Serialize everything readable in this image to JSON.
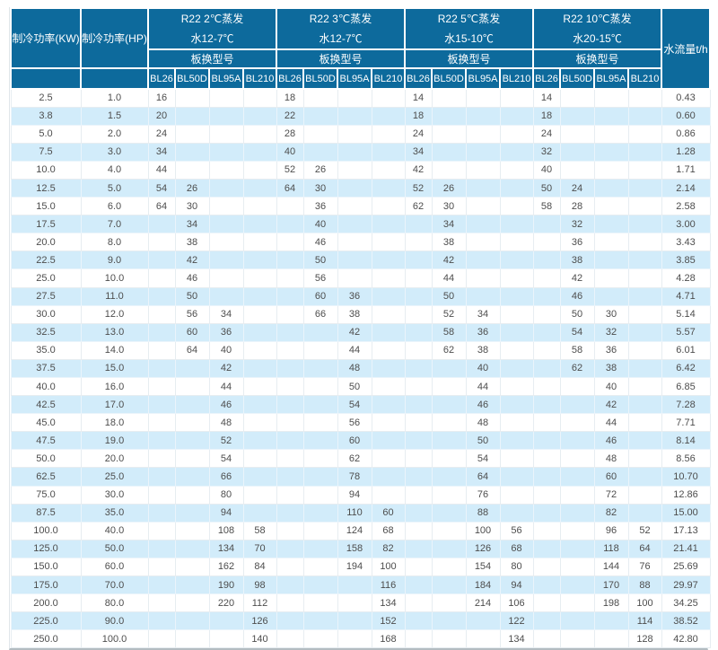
{
  "table": {
    "header": {
      "kw_label": "制冷功率(KW)",
      "hp_label": "制冷功率(HP)",
      "water_label": "水流量t/h",
      "model_row_label": "板换型号",
      "model_columns": [
        "BL26",
        "BL50D",
        "BL95A",
        "BL210"
      ],
      "groups": [
        {
          "title": "R22 2℃蒸发",
          "subtitle": "水12-7℃"
        },
        {
          "title": "R22 3℃蒸发",
          "subtitle": "水12-7℃"
        },
        {
          "title": "R22 5℃蒸发",
          "subtitle": "水15-10℃"
        },
        {
          "title": "R22 10℃蒸发",
          "subtitle": "水20-15℃"
        }
      ]
    },
    "rows": [
      [
        "2.5",
        "1.0",
        "16",
        "",
        "",
        "",
        "18",
        "",
        "",
        "",
        "14",
        "",
        "",
        "",
        "14",
        "",
        "",
        "",
        "0.43"
      ],
      [
        "3.8",
        "1.5",
        "20",
        "",
        "",
        "",
        "22",
        "",
        "",
        "",
        "18",
        "",
        "",
        "",
        "18",
        "",
        "",
        "",
        "0.60"
      ],
      [
        "5.0",
        "2.0",
        "24",
        "",
        "",
        "",
        "28",
        "",
        "",
        "",
        "24",
        "",
        "",
        "",
        "24",
        "",
        "",
        "",
        "0.86"
      ],
      [
        "7.5",
        "3.0",
        "34",
        "",
        "",
        "",
        "40",
        "",
        "",
        "",
        "34",
        "",
        "",
        "",
        "32",
        "",
        "",
        "",
        "1.28"
      ],
      [
        "10.0",
        "4.0",
        "44",
        "",
        "",
        "",
        "52",
        "26",
        "",
        "",
        "42",
        "",
        "",
        "",
        "40",
        "",
        "",
        "",
        "1.71"
      ],
      [
        "12.5",
        "5.0",
        "54",
        "26",
        "",
        "",
        "64",
        "30",
        "",
        "",
        "52",
        "26",
        "",
        "",
        "50",
        "24",
        "",
        "",
        "2.14"
      ],
      [
        "15.0",
        "6.0",
        "64",
        "30",
        "",
        "",
        "",
        "36",
        "",
        "",
        "62",
        "30",
        "",
        "",
        "58",
        "28",
        "",
        "",
        "2.58"
      ],
      [
        "17.5",
        "7.0",
        "",
        "34",
        "",
        "",
        "",
        "40",
        "",
        "",
        "",
        "34",
        "",
        "",
        "",
        "32",
        "",
        "",
        "3.00"
      ],
      [
        "20.0",
        "8.0",
        "",
        "38",
        "",
        "",
        "",
        "46",
        "",
        "",
        "",
        "38",
        "",
        "",
        "",
        "36",
        "",
        "",
        "3.43"
      ],
      [
        "22.5",
        "9.0",
        "",
        "42",
        "",
        "",
        "",
        "50",
        "",
        "",
        "",
        "42",
        "",
        "",
        "",
        "38",
        "",
        "",
        "3.85"
      ],
      [
        "25.0",
        "10.0",
        "",
        "46",
        "",
        "",
        "",
        "56",
        "",
        "",
        "",
        "44",
        "",
        "",
        "",
        "42",
        "",
        "",
        "4.28"
      ],
      [
        "27.5",
        "11.0",
        "",
        "50",
        "",
        "",
        "",
        "60",
        "36",
        "",
        "",
        "50",
        "",
        "",
        "",
        "46",
        "",
        "",
        "4.71"
      ],
      [
        "30.0",
        "12.0",
        "",
        "56",
        "34",
        "",
        "",
        "66",
        "38",
        "",
        "",
        "52",
        "34",
        "",
        "",
        "50",
        "30",
        "",
        "5.14"
      ],
      [
        "32.5",
        "13.0",
        "",
        "60",
        "36",
        "",
        "",
        "",
        "42",
        "",
        "",
        "58",
        "36",
        "",
        "",
        "54",
        "32",
        "",
        "5.57"
      ],
      [
        "35.0",
        "14.0",
        "",
        "64",
        "40",
        "",
        "",
        "",
        "44",
        "",
        "",
        "62",
        "38",
        "",
        "",
        "58",
        "36",
        "",
        "6.01"
      ],
      [
        "37.5",
        "15.0",
        "",
        "",
        "42",
        "",
        "",
        "",
        "48",
        "",
        "",
        "",
        "40",
        "",
        "",
        "62",
        "38",
        "",
        "6.42"
      ],
      [
        "40.0",
        "16.0",
        "",
        "",
        "44",
        "",
        "",
        "",
        "50",
        "",
        "",
        "",
        "44",
        "",
        "",
        "",
        "40",
        "",
        "6.85"
      ],
      [
        "42.5",
        "17.0",
        "",
        "",
        "46",
        "",
        "",
        "",
        "54",
        "",
        "",
        "",
        "46",
        "",
        "",
        "",
        "42",
        "",
        "7.28"
      ],
      [
        "45.0",
        "18.0",
        "",
        "",
        "48",
        "",
        "",
        "",
        "56",
        "",
        "",
        "",
        "48",
        "",
        "",
        "",
        "44",
        "",
        "7.71"
      ],
      [
        "47.5",
        "19.0",
        "",
        "",
        "52",
        "",
        "",
        "",
        "60",
        "",
        "",
        "",
        "50",
        "",
        "",
        "",
        "46",
        "",
        "8.14"
      ],
      [
        "50.0",
        "20.0",
        "",
        "",
        "54",
        "",
        "",
        "",
        "62",
        "",
        "",
        "",
        "54",
        "",
        "",
        "",
        "48",
        "",
        "8.56"
      ],
      [
        "62.5",
        "25.0",
        "",
        "",
        "66",
        "",
        "",
        "",
        "78",
        "",
        "",
        "",
        "64",
        "",
        "",
        "",
        "60",
        "",
        "10.70"
      ],
      [
        "75.0",
        "30.0",
        "",
        "",
        "80",
        "",
        "",
        "",
        "94",
        "",
        "",
        "",
        "76",
        "",
        "",
        "",
        "72",
        "",
        "12.86"
      ],
      [
        "87.5",
        "35.0",
        "",
        "",
        "94",
        "",
        "",
        "",
        "110",
        "60",
        "",
        "",
        "88",
        "",
        "",
        "",
        "82",
        "",
        "15.00"
      ],
      [
        "100.0",
        "40.0",
        "",
        "",
        "108",
        "58",
        "",
        "",
        "124",
        "68",
        "",
        "",
        "100",
        "56",
        "",
        "",
        "96",
        "52",
        "17.13"
      ],
      [
        "125.0",
        "50.0",
        "",
        "",
        "134",
        "70",
        "",
        "",
        "158",
        "82",
        "",
        "",
        "126",
        "68",
        "",
        "",
        "118",
        "64",
        "21.41"
      ],
      [
        "150.0",
        "60.0",
        "",
        "",
        "162",
        "84",
        "",
        "",
        "194",
        "100",
        "",
        "",
        "154",
        "80",
        "",
        "",
        "144",
        "76",
        "25.69"
      ],
      [
        "175.0",
        "70.0",
        "",
        "",
        "190",
        "98",
        "",
        "",
        "",
        "116",
        "",
        "",
        "184",
        "94",
        "",
        "",
        "170",
        "88",
        "29.97"
      ],
      [
        "200.0",
        "80.0",
        "",
        "",
        "220",
        "112",
        "",
        "",
        "",
        "134",
        "",
        "",
        "214",
        "106",
        "",
        "",
        "198",
        "100",
        "34.25"
      ],
      [
        "225.0",
        "90.0",
        "",
        "",
        "",
        "126",
        "",
        "",
        "",
        "152",
        "",
        "",
        "",
        "122",
        "",
        "",
        "",
        "114",
        "38.52"
      ],
      [
        "250.0",
        "100.0",
        "",
        "",
        "",
        "140",
        "",
        "",
        "",
        "168",
        "",
        "",
        "",
        "134",
        "",
        "",
        "",
        "128",
        "42.80"
      ]
    ]
  },
  "colors": {
    "header_bg": "#0d6a9c",
    "header_text": "#ffffff",
    "row_even_bg": "#ffffff",
    "row_odd_bg": "#d2ecfa",
    "cell_text": "#4d4d4d",
    "cell_border": "#e7edf1"
  }
}
